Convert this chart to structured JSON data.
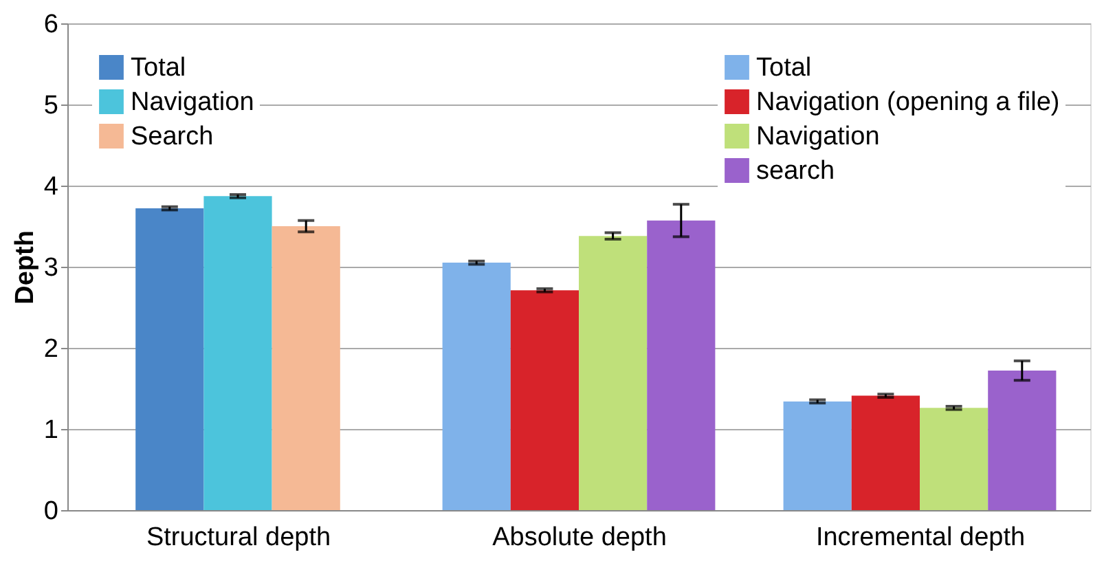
{
  "chart_data": {
    "type": "bar",
    "ylabel": "Depth",
    "categories": [
      "Structural depth",
      "Absolute depth",
      "Incremental depth"
    ],
    "series": [
      {
        "name": "Total",
        "color": "#4a86c8",
        "values": [
          3.72,
          null,
          null
        ],
        "errors": [
          0.02,
          null,
          null
        ]
      },
      {
        "name": "Navigation",
        "color": "#4cc4dc",
        "values": [
          3.87,
          null,
          null
        ],
        "errors": [
          0.02,
          null,
          null
        ]
      },
      {
        "name": "Search",
        "color": "#f5b995",
        "values": [
          3.5,
          null,
          null
        ],
        "errors": [
          0.07,
          null,
          null
        ]
      },
      {
        "name": "Total",
        "color": "#7fb2ea",
        "values": [
          null,
          3.05,
          1.34
        ],
        "errors": [
          null,
          0.02,
          0.02
        ]
      },
      {
        "name": "Navigation (opening a file)",
        "color": "#d8232a",
        "values": [
          null,
          2.71,
          1.41
        ],
        "errors": [
          null,
          0.02,
          0.02
        ]
      },
      {
        "name": "Navigation",
        "color": "#bfe07a",
        "values": [
          null,
          3.38,
          1.26
        ],
        "errors": [
          null,
          0.04,
          0.02
        ]
      },
      {
        "name": "search",
        "color": "#9a62cc",
        "values": [
          null,
          3.57,
          1.72
        ],
        "errors": [
          null,
          0.2,
          0.12
        ]
      }
    ],
    "ylim": [
      0,
      6
    ],
    "yticks": [
      0,
      1,
      2,
      3,
      4,
      5,
      6
    ],
    "grid": "y",
    "legend": "top left"
  }
}
